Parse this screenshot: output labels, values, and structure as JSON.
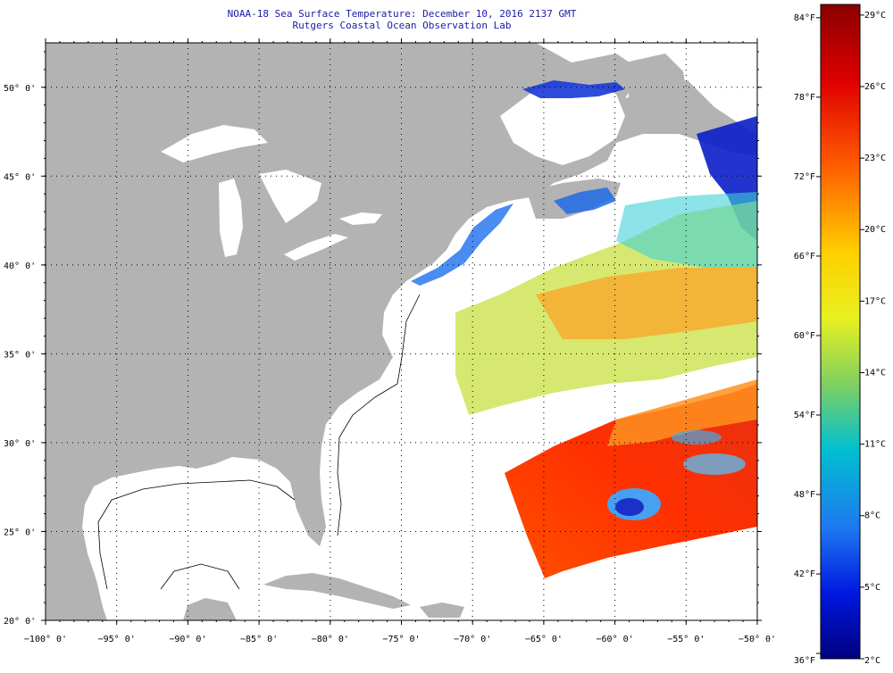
{
  "header": {
    "title": "NOAA-18 Sea Surface Temperature:  December 10, 2016 2137 GMT",
    "subtitle": "Rutgers Coastal Ocean Observation Lab"
  },
  "map": {
    "lon_range": [
      -100,
      -50
    ],
    "lat_range": [
      20,
      52.5
    ],
    "lat_ticks": [
      {
        "value": 50,
        "label": "50° 0'"
      },
      {
        "value": 45,
        "label": "45° 0'"
      },
      {
        "value": 40,
        "label": "40° 0'"
      },
      {
        "value": 35,
        "label": "35° 0'"
      },
      {
        "value": 30,
        "label": "30° 0'"
      },
      {
        "value": 25,
        "label": "25° 0'"
      },
      {
        "value": 20,
        "label": "20° 0'"
      }
    ],
    "lon_ticks": [
      {
        "value": -100,
        "label": "−100° 0'"
      },
      {
        "value": -95,
        "label": "−95° 0'"
      },
      {
        "value": -90,
        "label": "−90° 0'"
      },
      {
        "value": -85,
        "label": "−85° 0'"
      },
      {
        "value": -80,
        "label": "−80° 0'"
      },
      {
        "value": -75,
        "label": "−75° 0'"
      },
      {
        "value": -70,
        "label": "−70° 0'"
      },
      {
        "value": -65,
        "label": "−65° 0'"
      },
      {
        "value": -60,
        "label": "−60° 0'"
      },
      {
        "value": -55,
        "label": "−55° 0'"
      },
      {
        "value": -50,
        "label": "−50° 0'"
      }
    ],
    "land_color": "#b3b3b3",
    "water_color": "#ffffff"
  },
  "colorbar": {
    "fahrenheit": [
      "84°F",
      "78°F",
      "72°F",
      "66°F",
      "60°F",
      "54°F",
      "48°F",
      "42°F",
      "36°F"
    ],
    "celsius": [
      "29°C",
      "26°C",
      "23°C",
      "20°C",
      "17°C",
      "14°C",
      "11°C",
      "8°C",
      "5°C",
      "2°C"
    ],
    "colors": [
      "#8b0000",
      "#e60000",
      "#ff5a00",
      "#ffa500",
      "#ffff00",
      "#9acd32",
      "#00c8c8",
      "#1e90ff",
      "#0000e0",
      "#00008b"
    ]
  }
}
